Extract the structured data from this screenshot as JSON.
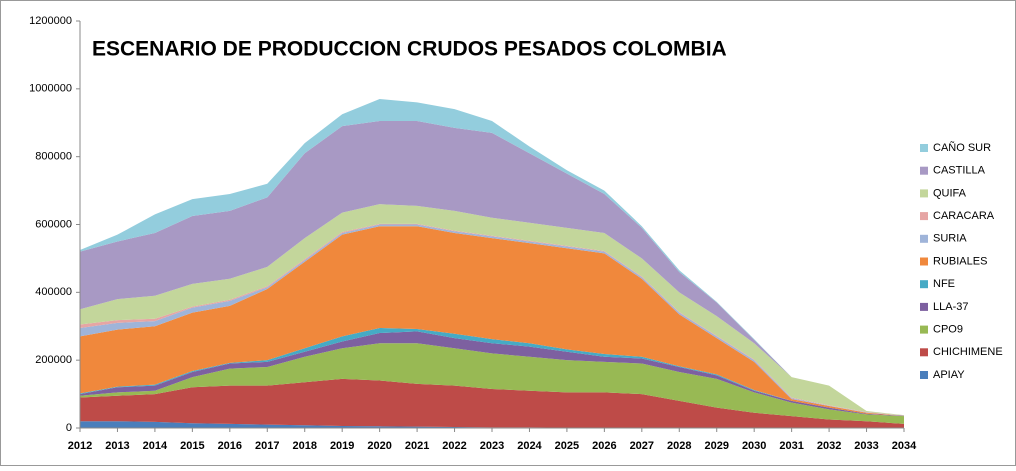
{
  "chart_data": {
    "type": "stacked_area",
    "title": "ESCENARIO DE PRODUCCION CRUDOS PESADOS COLOMBIA",
    "categories": [
      "2012",
      "2013",
      "2014",
      "2015",
      "2016",
      "2017",
      "2018",
      "2019",
      "2020",
      "2021",
      "2022",
      "2023",
      "2024",
      "2025",
      "2026",
      "2027",
      "2028",
      "2029",
      "2030",
      "2031",
      "2032",
      "2033",
      "2034"
    ],
    "ylim": [
      0,
      1200000
    ],
    "yticks": [
      0,
      200000,
      400000,
      600000,
      800000,
      1000000,
      1200000
    ],
    "legend": "right",
    "series": [
      {
        "name": "APIAY",
        "color": "#4a7ebb",
        "values": [
          20000,
          20000,
          18000,
          14000,
          12000,
          10000,
          8000,
          6000,
          5000,
          4000,
          3000,
          2000,
          2000,
          1000,
          1000,
          1000,
          0,
          0,
          0,
          0,
          0,
          0,
          0
        ]
      },
      {
        "name": "CHICHIMENE",
        "color": "#be4b48",
        "values": [
          70000,
          75000,
          82000,
          106000,
          113000,
          115000,
          127000,
          139000,
          135000,
          126000,
          122000,
          113000,
          108000,
          104000,
          104000,
          99000,
          80000,
          60000,
          45000,
          35000,
          25000,
          20000,
          12000
        ]
      },
      {
        "name": "CPO9",
        "color": "#98b954",
        "values": [
          5000,
          10000,
          10000,
          30000,
          50000,
          55000,
          75000,
          90000,
          110000,
          120000,
          110000,
          105000,
          100000,
          95000,
          90000,
          90000,
          85000,
          85000,
          60000,
          40000,
          30000,
          20000,
          23000
        ]
      },
      {
        "name": "LLA-37",
        "color": "#7d60a0",
        "values": [
          5000,
          15000,
          15000,
          15000,
          15000,
          15000,
          15000,
          20000,
          30000,
          35000,
          30000,
          30000,
          30000,
          25000,
          15000,
          15000,
          15000,
          10000,
          5000,
          5000,
          5000,
          2000,
          1000
        ]
      },
      {
        "name": "NFE",
        "color": "#46aac5",
        "values": [
          2000,
          2000,
          3000,
          3000,
          2000,
          5000,
          10000,
          15000,
          15000,
          7000,
          13000,
          12000,
          10000,
          7000,
          8000,
          5000,
          2000,
          3000,
          2000,
          0,
          0,
          0,
          0
        ]
      },
      {
        "name": "RUBIALES",
        "color": "#f0883c",
        "values": [
          168000,
          168000,
          172000,
          172000,
          168000,
          210000,
          255000,
          300000,
          300000,
          303000,
          297000,
          298000,
          295000,
          298000,
          297000,
          230000,
          153000,
          107000,
          83000,
          5000,
          5000,
          3000,
          0
        ]
      },
      {
        "name": "SURIA",
        "color": "#9fb4d9",
        "values": [
          25000,
          20000,
          15000,
          15000,
          15000,
          5000,
          5000,
          5000,
          5000,
          5000,
          5000,
          5000,
          5000,
          5000,
          5000,
          5000,
          5000,
          5000,
          5000,
          3000,
          1000,
          1000,
          0
        ]
      },
      {
        "name": "CARACARA",
        "color": "#e6a5a4",
        "values": [
          10000,
          8000,
          7000,
          3000,
          3000,
          3000,
          3000,
          3000,
          2000,
          2000,
          2000,
          2000,
          2000,
          2000,
          2000,
          2000,
          2000,
          2000,
          2000,
          2000,
          1000,
          1000,
          1000
        ]
      },
      {
        "name": "QUIFA",
        "color": "#c3d69b",
        "values": [
          45000,
          62000,
          68000,
          67000,
          62000,
          57000,
          62000,
          57000,
          58000,
          53000,
          58000,
          53000,
          53000,
          53000,
          53000,
          53000,
          58000,
          58000,
          48000,
          60000,
          58000,
          3000,
          1000
        ]
      },
      {
        "name": "CASTILLA",
        "color": "#a899c4",
        "values": [
          170000,
          170000,
          185000,
          200000,
          200000,
          205000,
          250000,
          255000,
          245000,
          250000,
          245000,
          250000,
          205000,
          160000,
          115000,
          90000,
          60000,
          40000,
          10000,
          0,
          0,
          0,
          0
        ]
      },
      {
        "name": "CAÑO SUR",
        "color": "#93cddd",
        "values": [
          5000,
          20000,
          55000,
          50000,
          50000,
          40000,
          30000,
          35000,
          65000,
          55000,
          55000,
          35000,
          20000,
          10000,
          10000,
          5000,
          5000,
          2000,
          2000,
          0,
          0,
          0,
          0
        ]
      }
    ]
  }
}
